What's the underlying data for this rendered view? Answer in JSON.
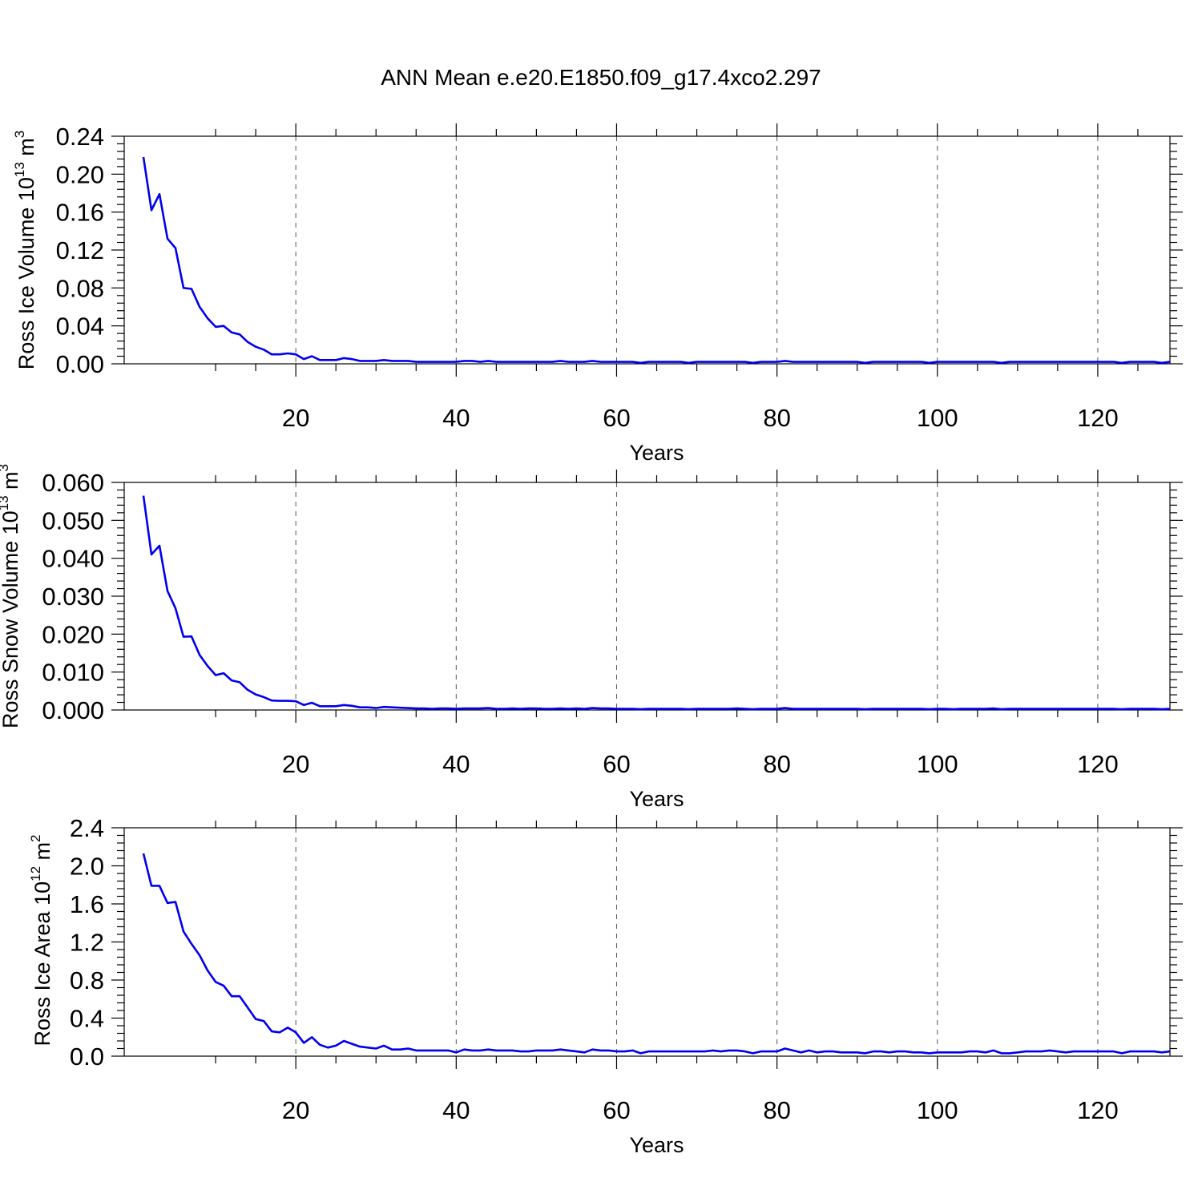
{
  "figure": {
    "title": "ANN Mean e.e20.E1850.f09_g17.4xco2.297"
  },
  "colors": {
    "series": "#0000ee"
  },
  "chart_data": [
    {
      "type": "line",
      "ylabel": "Ross Ice Volume 10",
      "ylabel_exp": "13",
      "ylabel_unit": " m",
      "ylabel_unit_exp": "3",
      "xlabel": "Years",
      "xlim": [
        1,
        129
      ],
      "ylim": [
        0,
        0.24
      ],
      "yticks": [
        "0.00",
        "0.04",
        "0.08",
        "0.12",
        "0.16",
        "0.20",
        "0.24"
      ],
      "xticks": [
        "20",
        "40",
        "60",
        "80",
        "100",
        "120"
      ],
      "grid": "vertical dashed at major x ticks",
      "x_start": 1,
      "values": [
        0.218,
        0.162,
        0.179,
        0.132,
        0.122,
        0.08,
        0.079,
        0.06,
        0.048,
        0.039,
        0.04,
        0.033,
        0.031,
        0.023,
        0.018,
        0.015,
        0.01,
        0.01,
        0.011,
        0.01,
        0.005,
        0.008,
        0.004,
        0.004,
        0.004,
        0.006,
        0.005,
        0.003,
        0.003,
        0.003,
        0.004,
        0.003,
        0.003,
        0.003,
        0.002,
        0.002,
        0.002,
        0.002,
        0.002,
        0.002,
        0.003,
        0.003,
        0.002,
        0.003,
        0.002,
        0.002,
        0.002,
        0.002,
        0.002,
        0.002,
        0.002,
        0.002,
        0.003,
        0.002,
        0.002,
        0.002,
        0.003,
        0.002,
        0.002,
        0.002,
        0.002,
        0.002,
        0.001,
        0.002,
        0.002,
        0.002,
        0.002,
        0.002,
        0.001,
        0.002,
        0.002,
        0.002,
        0.002,
        0.002,
        0.002,
        0.002,
        0.001,
        0.002,
        0.002,
        0.002,
        0.003,
        0.002,
        0.002,
        0.002,
        0.002,
        0.002,
        0.002,
        0.002,
        0.002,
        0.002,
        0.001,
        0.002,
        0.002,
        0.002,
        0.002,
        0.002,
        0.002,
        0.002,
        0.001,
        0.002,
        0.002,
        0.002,
        0.002,
        0.002,
        0.002,
        0.002,
        0.002,
        0.001,
        0.002,
        0.002,
        0.002,
        0.002,
        0.002,
        0.002,
        0.002,
        0.002,
        0.002,
        0.002,
        0.002,
        0.002,
        0.002,
        0.002,
        0.001,
        0.002,
        0.002,
        0.002,
        0.002,
        0.001,
        0.002
      ]
    },
    {
      "type": "line",
      "ylabel": "Ross Snow Volume 10",
      "ylabel_exp": "13",
      "ylabel_unit": " m",
      "ylabel_unit_exp": "3",
      "xlabel": "Years",
      "xlim": [
        1,
        129
      ],
      "ylim": [
        0,
        0.06
      ],
      "yticks": [
        "0.000",
        "0.010",
        "0.020",
        "0.030",
        "0.040",
        "0.050",
        "0.060"
      ],
      "xticks": [
        "20",
        "40",
        "60",
        "80",
        "100",
        "120"
      ],
      "grid": "vertical dashed at major x ticks",
      "x_start": 1,
      "values": [
        0.0565,
        0.041,
        0.0433,
        0.0314,
        0.0268,
        0.0193,
        0.0194,
        0.0145,
        0.0116,
        0.0092,
        0.0097,
        0.0078,
        0.0073,
        0.0053,
        0.0041,
        0.0034,
        0.0025,
        0.0024,
        0.0024,
        0.0023,
        0.0013,
        0.0019,
        0.001,
        0.001,
        0.001,
        0.0013,
        0.0011,
        0.0007,
        0.0007,
        0.0005,
        0.0008,
        0.0007,
        0.0006,
        0.0005,
        0.0004,
        0.0004,
        0.0003,
        0.0004,
        0.0004,
        0.0003,
        0.0004,
        0.0004,
        0.0004,
        0.0005,
        0.0003,
        0.0003,
        0.0004,
        0.0003,
        0.0004,
        0.0004,
        0.0003,
        0.0003,
        0.0004,
        0.0003,
        0.0004,
        0.0003,
        0.0005,
        0.0004,
        0.0004,
        0.0003,
        0.0003,
        0.0003,
        0.0002,
        0.0003,
        0.0003,
        0.0003,
        0.0003,
        0.0003,
        0.0002,
        0.0003,
        0.0003,
        0.0003,
        0.0003,
        0.0003,
        0.0004,
        0.0003,
        0.0002,
        0.0003,
        0.0003,
        0.0003,
        0.0005,
        0.0003,
        0.0003,
        0.0003,
        0.0003,
        0.0003,
        0.0003,
        0.0003,
        0.0003,
        0.0003,
        0.0002,
        0.0003,
        0.0003,
        0.0003,
        0.0003,
        0.0003,
        0.0003,
        0.0003,
        0.0002,
        0.0003,
        0.0003,
        0.0002,
        0.0003,
        0.0003,
        0.0003,
        0.0003,
        0.0004,
        0.0002,
        0.0003,
        0.0003,
        0.0003,
        0.0003,
        0.0003,
        0.0003,
        0.0003,
        0.0003,
        0.0003,
        0.0003,
        0.0003,
        0.0003,
        0.0003,
        0.0003,
        0.0002,
        0.0003,
        0.0003,
        0.0003,
        0.0003,
        0.0002,
        0.0003
      ]
    },
    {
      "type": "line",
      "ylabel": "Ross Ice Area 10",
      "ylabel_exp": "12",
      "ylabel_unit": " m",
      "ylabel_unit_exp": "2",
      "xlabel": "Years",
      "xlim": [
        1,
        129
      ],
      "ylim": [
        0,
        2.4
      ],
      "yticks": [
        "0.0",
        "0.4",
        "0.8",
        "1.2",
        "1.6",
        "2.0",
        "2.4"
      ],
      "xticks": [
        "20",
        "40",
        "60",
        "80",
        "100",
        "120"
      ],
      "grid": "vertical dashed at major x ticks",
      "x_start": 1,
      "values": [
        2.13,
        1.79,
        1.79,
        1.61,
        1.62,
        1.31,
        1.18,
        1.06,
        0.9,
        0.78,
        0.74,
        0.63,
        0.63,
        0.51,
        0.39,
        0.37,
        0.26,
        0.25,
        0.3,
        0.25,
        0.14,
        0.2,
        0.12,
        0.09,
        0.11,
        0.16,
        0.13,
        0.1,
        0.09,
        0.08,
        0.11,
        0.07,
        0.07,
        0.08,
        0.06,
        0.06,
        0.06,
        0.06,
        0.06,
        0.04,
        0.07,
        0.06,
        0.06,
        0.07,
        0.06,
        0.06,
        0.06,
        0.05,
        0.05,
        0.06,
        0.06,
        0.06,
        0.07,
        0.06,
        0.05,
        0.04,
        0.07,
        0.06,
        0.06,
        0.05,
        0.05,
        0.06,
        0.03,
        0.05,
        0.05,
        0.05,
        0.05,
        0.05,
        0.05,
        0.05,
        0.05,
        0.06,
        0.05,
        0.06,
        0.06,
        0.05,
        0.03,
        0.05,
        0.05,
        0.05,
        0.08,
        0.06,
        0.04,
        0.06,
        0.04,
        0.05,
        0.05,
        0.04,
        0.04,
        0.04,
        0.03,
        0.05,
        0.05,
        0.04,
        0.05,
        0.05,
        0.04,
        0.04,
        0.03,
        0.04,
        0.04,
        0.04,
        0.04,
        0.05,
        0.05,
        0.04,
        0.06,
        0.03,
        0.03,
        0.04,
        0.05,
        0.05,
        0.05,
        0.06,
        0.05,
        0.04,
        0.05,
        0.05,
        0.05,
        0.05,
        0.05,
        0.05,
        0.03,
        0.05,
        0.05,
        0.05,
        0.05,
        0.04,
        0.05
      ]
    }
  ]
}
